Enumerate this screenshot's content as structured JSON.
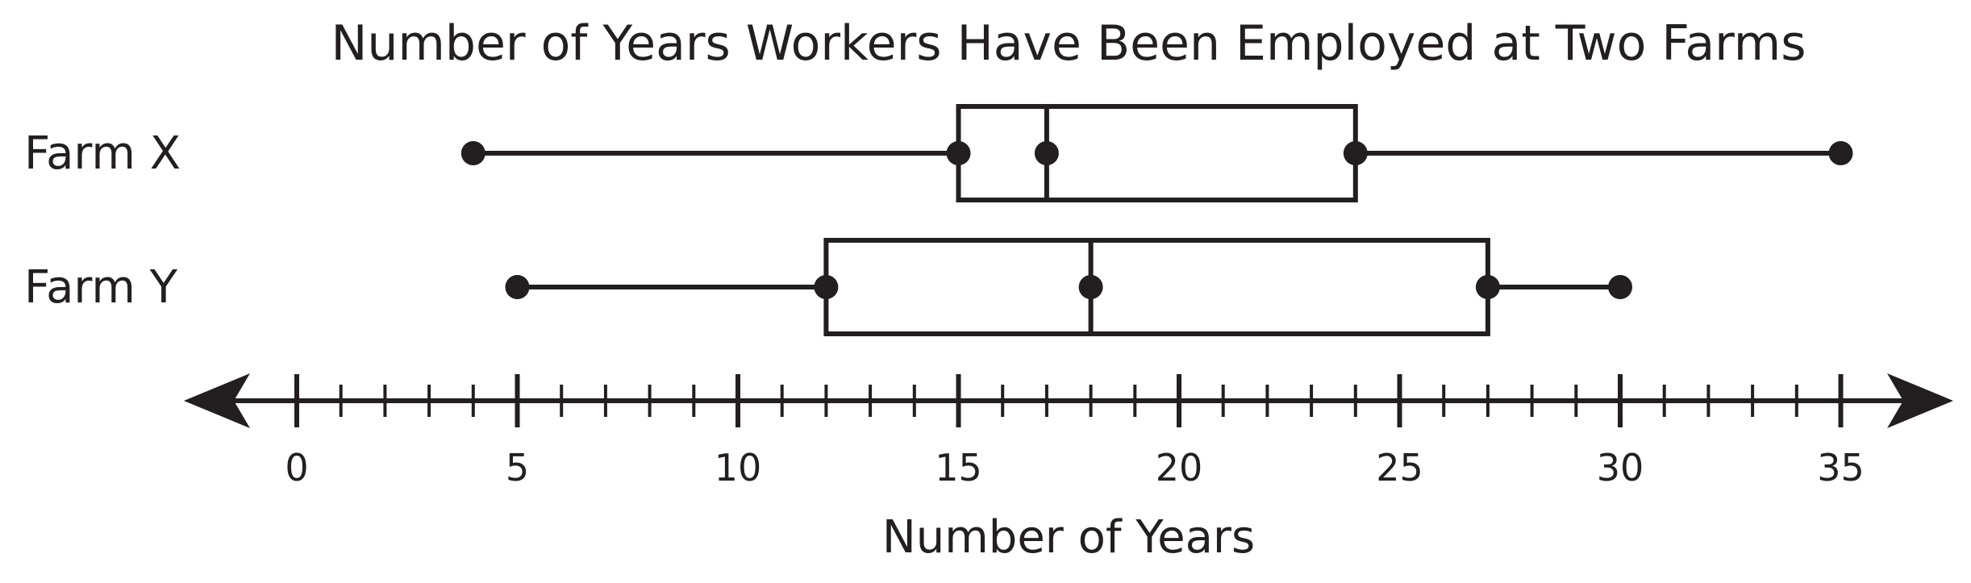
{
  "chart_data": {
    "type": "boxplot",
    "title": "Number of Years Workers Have Been Employed at Two Farms",
    "xlabel": "Number of Years",
    "xlim": [
      0,
      35
    ],
    "major_tick_step": 5,
    "minor_tick_step": 1,
    "tick_labels": [
      "0",
      "5",
      "10",
      "15",
      "20",
      "25",
      "30",
      "35"
    ],
    "arrows_both_ends": true,
    "series": [
      {
        "name": "Farm X",
        "min": 4,
        "q1": 15,
        "median": 17,
        "q3": 24,
        "max": 35
      },
      {
        "name": "Farm Y",
        "min": 5,
        "q1": 12,
        "median": 18,
        "q3": 27,
        "max": 30
      }
    ],
    "colors": {
      "ink": "#231f20",
      "background": "#ffffff"
    }
  }
}
